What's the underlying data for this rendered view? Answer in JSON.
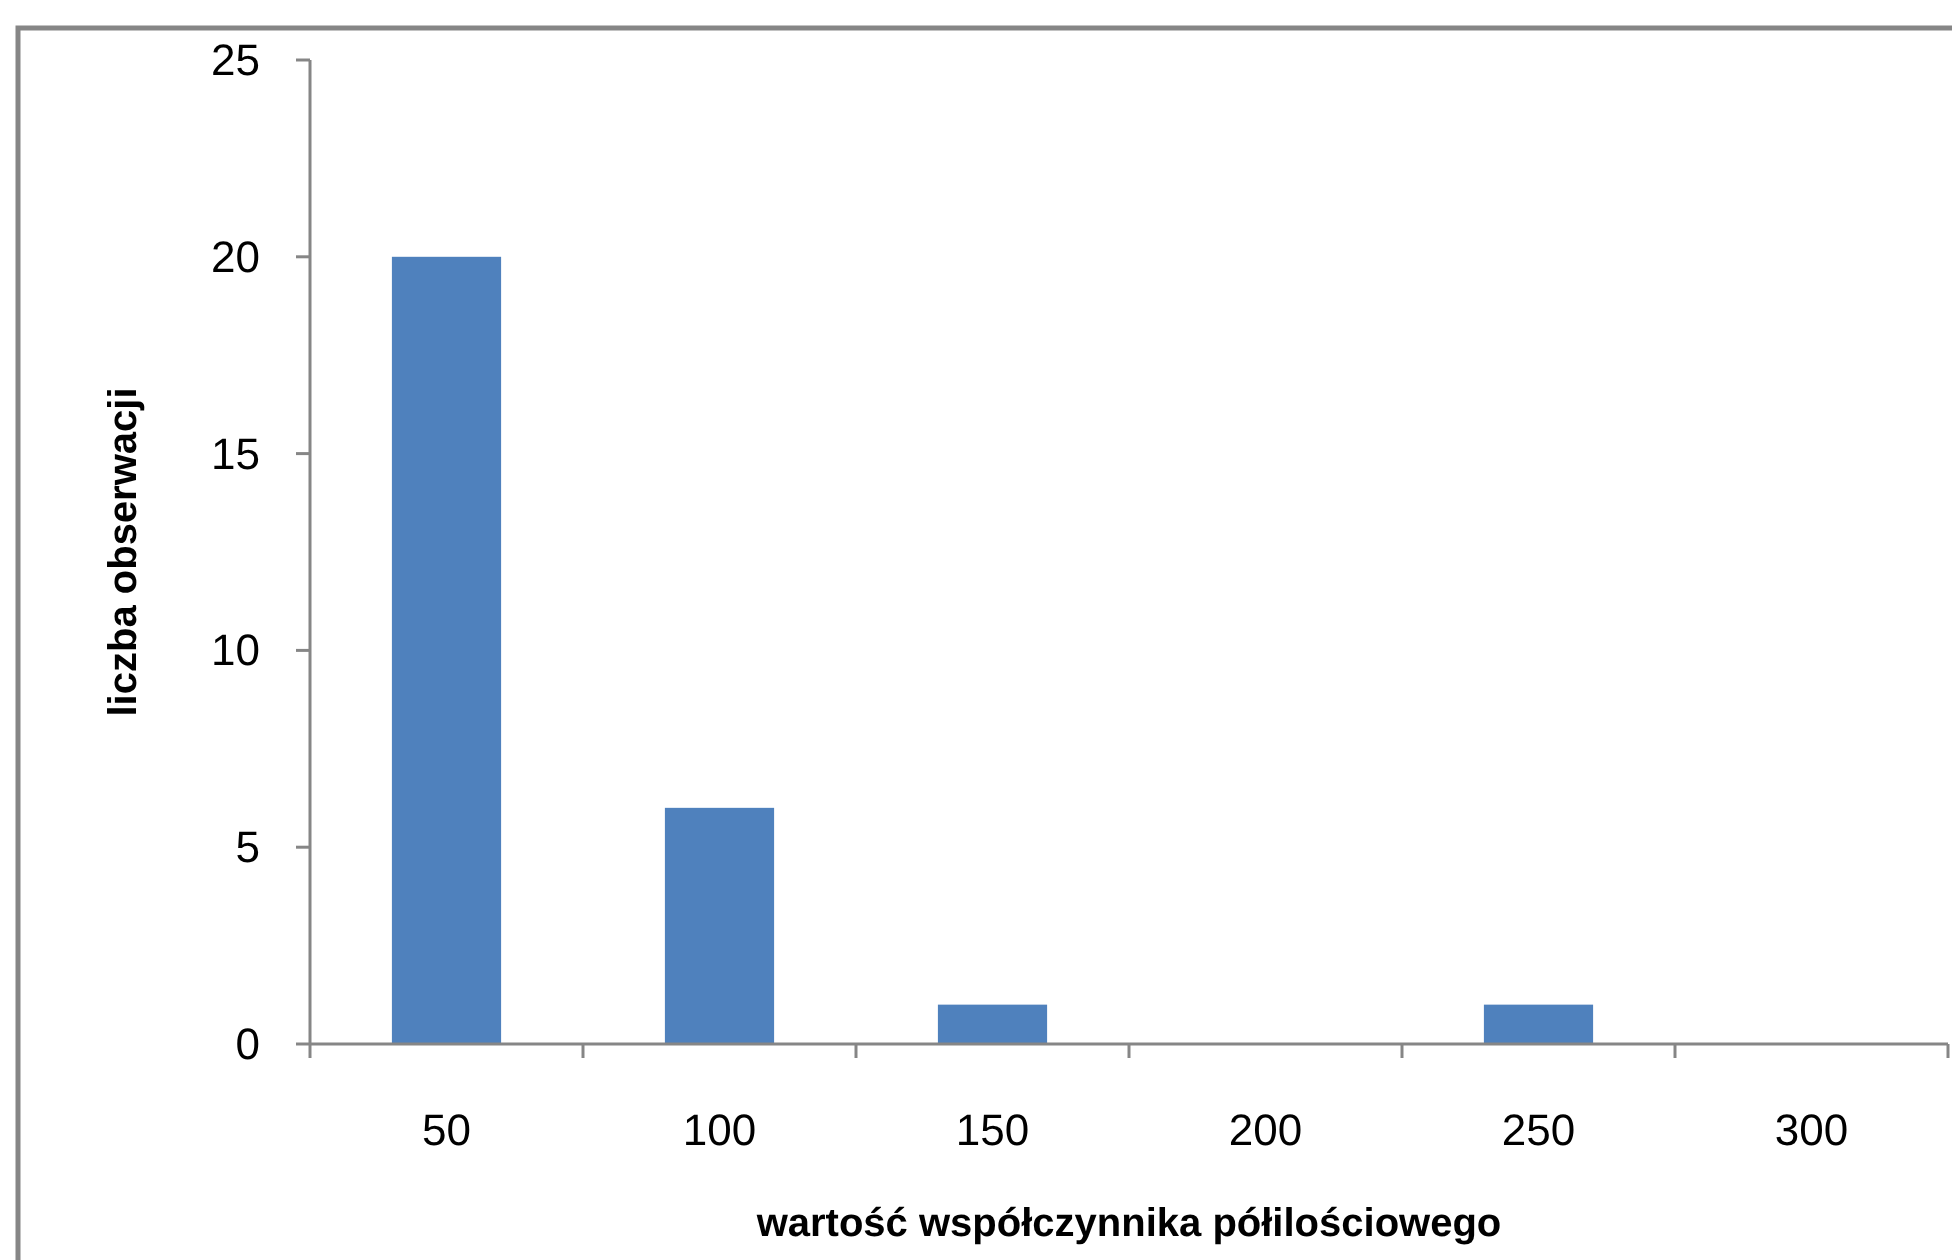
{
  "chart_data": {
    "type": "bar",
    "xlabel": "wartość współczynnika półilościowego",
    "ylabel": "liczba obserwacji",
    "categories": [
      "50",
      "100",
      "150",
      "200",
      "250",
      "300"
    ],
    "values": [
      20,
      6,
      1,
      0,
      1,
      0
    ],
    "color": "#4f81bd",
    "ylim": [
      0,
      25
    ],
    "yticks": [
      0,
      5,
      10,
      15,
      20,
      25
    ],
    "grid": false
  }
}
